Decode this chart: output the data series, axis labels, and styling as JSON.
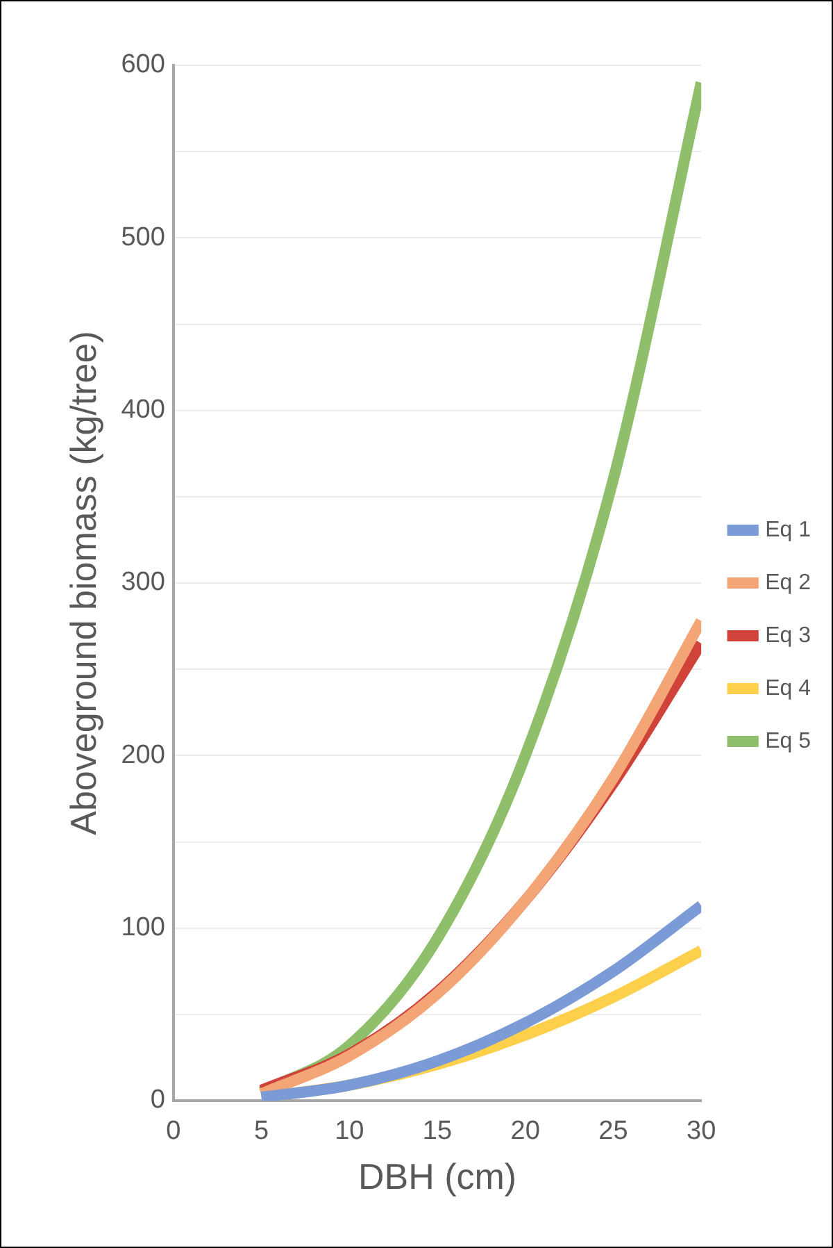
{
  "chart_data": {
    "type": "line",
    "xlabel": "DBH (cm)",
    "ylabel": "Aboveground biomass (kg/tree)",
    "x": [
      5,
      10,
      15,
      20,
      25,
      30
    ],
    "series": [
      {
        "name": "Eq 1",
        "color": "#7b9bd6",
        "values": [
          2,
          9,
          23,
          45,
          75,
          113
        ]
      },
      {
        "name": "Eq 2",
        "color": "#f4a575",
        "values": [
          4,
          26,
          62,
          116,
          187,
          278
        ]
      },
      {
        "name": "Eq 3",
        "color": "#d0433a",
        "values": [
          6,
          27,
          63,
          116,
          184,
          265
        ]
      },
      {
        "name": "Eq 4",
        "color": "#fdd04c",
        "values": [
          2,
          9,
          21,
          38,
          60,
          87
        ]
      },
      {
        "name": "Eq 5",
        "color": "#8fbf6a",
        "values": [
          5,
          32,
          94,
          200,
          360,
          590
        ]
      }
    ],
    "xlim": [
      0,
      30
    ],
    "xticks": [
      0,
      5,
      10,
      15,
      20,
      25,
      30
    ],
    "ylim": [
      0,
      600
    ],
    "yticks": [
      0,
      {
        "value": 50,
        "label": null
      },
      100,
      {
        "value": 150,
        "label": null
      },
      200,
      {
        "value": 250,
        "label": null
      },
      300,
      {
        "value": 350,
        "label": null
      },
      400,
      {
        "value": 450,
        "label": null
      },
      500,
      {
        "value": 550,
        "label": null
      },
      600
    ],
    "grid": "y",
    "legend": "right",
    "marker": "none",
    "line_style": "solid"
  }
}
